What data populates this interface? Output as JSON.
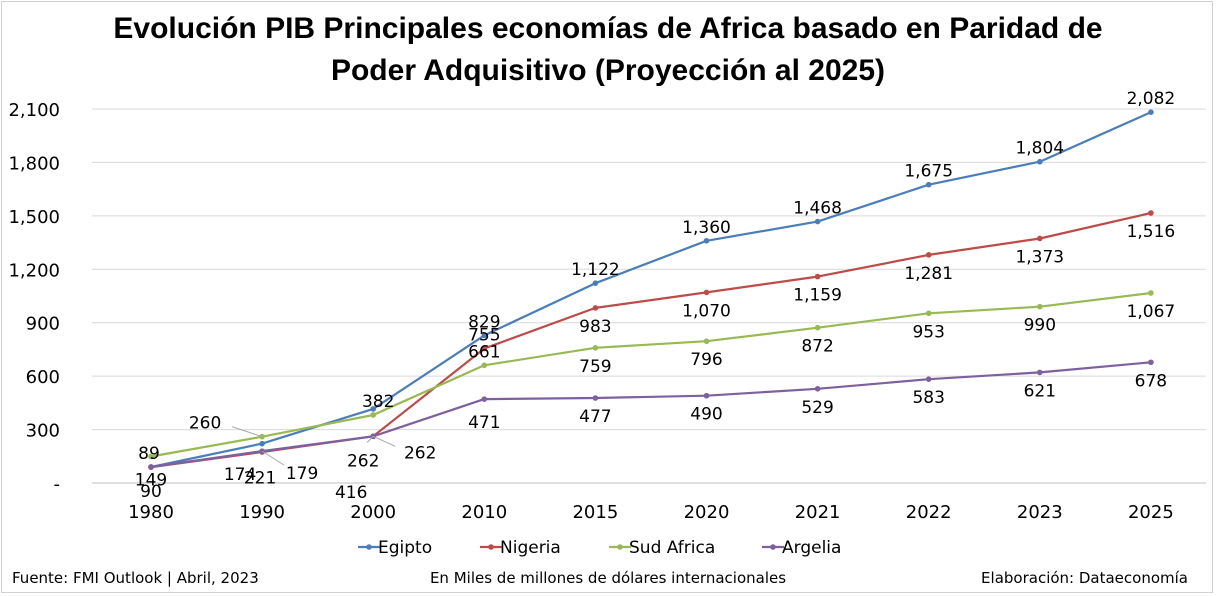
{
  "chart_data": {
    "type": "line",
    "title_lines": [
      "Evolución PIB Principales economías de Africa basado en Paridad de",
      "Poder Adquisitivo (Proyección al 2025)"
    ],
    "categories": [
      "1980",
      "1990",
      "2000",
      "2010",
      "2015",
      "2020",
      "2021",
      "2022",
      "2023",
      "2025"
    ],
    "ylim": [
      0,
      2100
    ],
    "yticks": [
      0,
      300,
      600,
      900,
      1200,
      1500,
      1800,
      2100
    ],
    "ytick_labels": [
      "-",
      "300",
      "600",
      "900",
      "1,200",
      "1,500",
      "1,800",
      "2,100"
    ],
    "grid": true,
    "legend_position": "bottom",
    "series": [
      {
        "name": "Egipto",
        "color": "#4a7ebb",
        "values": [
          90,
          221,
          416,
          829,
          1122,
          1360,
          1468,
          1675,
          1804,
          2082
        ],
        "labels": [
          "90",
          "221",
          "416",
          "829",
          "1,122",
          "1,360",
          "1,468",
          "1,675",
          "1,804",
          "2,082"
        ]
      },
      {
        "name": "Nigeria",
        "color": "#be4b48",
        "values": [
          89,
          174,
          262,
          755,
          983,
          1070,
          1159,
          1281,
          1373,
          1516
        ],
        "labels": [
          "89",
          "174",
          "262",
          "755",
          "983",
          "1,070",
          "1,159",
          "1,281",
          "1,373",
          "1,516"
        ]
      },
      {
        "name": "Sud Africa",
        "color": "#98b954",
        "values": [
          149,
          260,
          382,
          661,
          759,
          796,
          872,
          953,
          990,
          1067
        ],
        "labels": [
          "149",
          "260",
          "382",
          "661",
          "759",
          "796",
          "872",
          "953",
          "990",
          "1,067"
        ]
      },
      {
        "name": "Argelia",
        "color": "#7d60a0",
        "values": [
          90,
          179,
          262,
          471,
          477,
          490,
          529,
          583,
          621,
          678
        ],
        "labels": [
          "",
          "179",
          "262",
          "471",
          "477",
          "490",
          "529",
          "583",
          "621",
          "678"
        ]
      }
    ]
  },
  "footer": {
    "source": "Fuente: FMI Outlook | Abril, 2023",
    "units": "En Miles de millones de dólares internacionales",
    "credit": "Elaboración: Dataeconomía"
  }
}
